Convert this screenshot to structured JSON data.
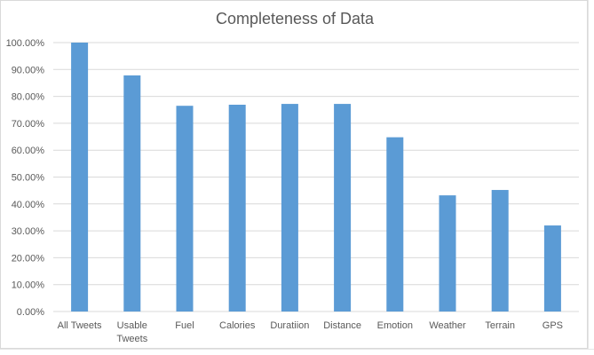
{
  "chart_data": {
    "type": "bar",
    "title": "Completeness of Data",
    "xlabel": "",
    "ylabel": "",
    "categories": [
      "All Tweets",
      "Usable Tweets",
      "Fuel",
      "Calories",
      "Duratiion",
      "Distance",
      "Emotion",
      "Weather",
      "Terrain",
      "GPS"
    ],
    "category_lines": [
      [
        "All Tweets"
      ],
      [
        "Usable",
        "Tweets"
      ],
      [
        "Fuel"
      ],
      [
        "Calories"
      ],
      [
        "Duratiion"
      ],
      [
        "Distance"
      ],
      [
        "Emotion"
      ],
      [
        "Weather"
      ],
      [
        "Terrain"
      ],
      [
        "GPS"
      ]
    ],
    "values": [
      100.0,
      87.8,
      76.5,
      76.9,
      77.2,
      77.2,
      64.8,
      43.2,
      45.2,
      32.0
    ],
    "ylim": [
      0,
      100
    ],
    "yticks": [
      "0.00%",
      "10.00%",
      "20.00%",
      "30.00%",
      "40.00%",
      "50.00%",
      "60.00%",
      "70.00%",
      "80.00%",
      "90.00%",
      "100.00%"
    ],
    "grid": true,
    "legend": "none",
    "bar_color": "#5b9bd5",
    "grid_color": "#d9d9d9"
  }
}
